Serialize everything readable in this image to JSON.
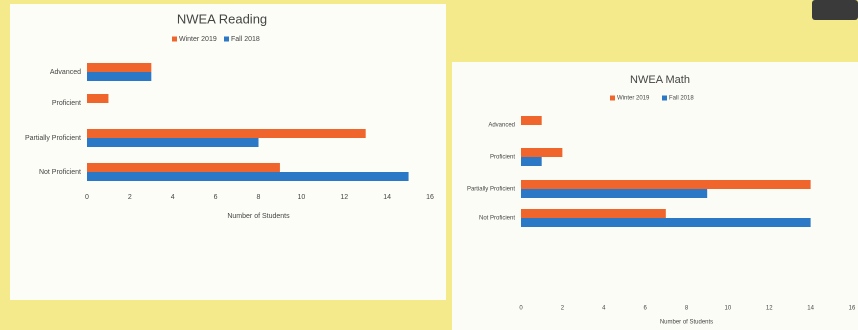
{
  "chart_data": [
    {
      "type": "hbar",
      "title": "NWEA Reading",
      "x_label": "Number of Students",
      "categories": [
        "Advanced",
        "Proficient",
        "Partially Proficient",
        "Not Proficient"
      ],
      "series": [
        {
          "name": "Winter 2019",
          "color": "#f0652c",
          "values": [
            3,
            1,
            13,
            9
          ]
        },
        {
          "name": "Fall 2018",
          "color": "#2b78c6",
          "values": [
            3,
            0,
            8,
            15
          ]
        }
      ],
      "xlim": [
        0,
        16
      ],
      "xticks": [
        0,
        2,
        4,
        6,
        8,
        10,
        12,
        14,
        16
      ],
      "grid": false
    },
    {
      "type": "hbar",
      "title": "NWEA Math",
      "x_label": "Number of Students",
      "categories": [
        "Advanced",
        "Proficient",
        "Partially Proficient",
        "Not Proficient"
      ],
      "series": [
        {
          "name": "Winter 2019",
          "color": "#f0652c",
          "values": [
            1,
            2,
            14,
            7
          ]
        },
        {
          "name": "Fall 2018",
          "color": "#2b78c6",
          "values": [
            0,
            1,
            9,
            14
          ]
        }
      ],
      "xlim": [
        0,
        16
      ],
      "xticks": [
        0,
        2,
        4,
        6,
        8,
        10,
        12,
        14,
        16
      ],
      "grid": false
    }
  ]
}
